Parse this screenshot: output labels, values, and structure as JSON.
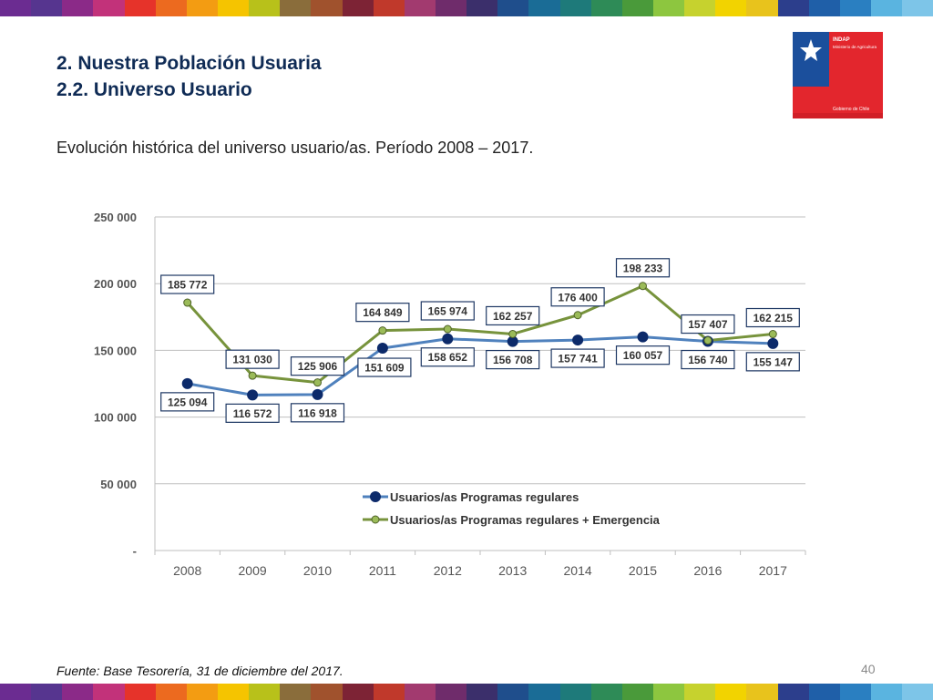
{
  "heading": {
    "line1": "2. Nuestra Población Usuaria",
    "line2": "2.2. Universo Usuario"
  },
  "logo": {
    "name": "INDAP",
    "ministry": "Ministerio de Agricultura",
    "government": "Gobierno de Chile",
    "icon": "chile-coat-of-arms-icon"
  },
  "subtitle": "Evolución histórica del universo usuario/as. Período 2008 – 2017.",
  "source": "Fuente: Base Tesorería, 31 de diciembre del 2017.",
  "page_number": "40",
  "colors": {
    "navy": "#0f2b55",
    "series1_line": "#4f81bd",
    "series1_marker": "#0c2a6a",
    "series2_line": "#77933c",
    "series2_marker": "#9bbb59",
    "grid": "#bfbfbf",
    "stripe": [
      "#6b2c91",
      "#56358f",
      "#8b2a88",
      "#c2327a",
      "#e6332a",
      "#ec6a1f",
      "#f39c12",
      "#f5c400",
      "#b8c11a",
      "#8a6d3b",
      "#a0522d",
      "#7d2335",
      "#c0392b",
      "#a23a6f",
      "#6f2c6b",
      "#3b2f6b",
      "#1f4e8c",
      "#1a6c96",
      "#1e7a7a",
      "#2e8b57",
      "#4a9a3a",
      "#8dc63f",
      "#c6d22e",
      "#f2d300",
      "#e8c31c",
      "#2c3e8c",
      "#1f5fa8",
      "#2a7fc1",
      "#5ab4e0",
      "#7dc5e8"
    ]
  },
  "chart_data": {
    "type": "line",
    "categories": [
      "2008",
      "2009",
      "2010",
      "2011",
      "2012",
      "2013",
      "2014",
      "2015",
      "2016",
      "2017"
    ],
    "ylim": [
      0,
      250000
    ],
    "yticks": [
      {
        "value": 0,
        "label": "-"
      },
      {
        "value": 50000,
        "label": "50 000"
      },
      {
        "value": 100000,
        "label": "100 000"
      },
      {
        "value": 150000,
        "label": "150 000"
      },
      {
        "value": 200000,
        "label": "200 000"
      },
      {
        "value": 250000,
        "label": "250 000"
      }
    ],
    "grid": true,
    "legend_position": "center-bottom",
    "series": [
      {
        "name": "Usuarios/as Programas regulares",
        "values": [
          125094,
          116572,
          116918,
          151609,
          158652,
          156708,
          157741,
          160057,
          156740,
          155147
        ],
        "labels": [
          "125 094",
          "116 572",
          "116 918",
          "151 609",
          "158 652",
          "156 708",
          "157 741",
          "160 057",
          "156 740",
          "155 147"
        ]
      },
      {
        "name": "Usuarios/as Programas regulares + Emergencia",
        "values": [
          185772,
          131030,
          125906,
          164849,
          165974,
          162257,
          176400,
          198233,
          157407,
          162215
        ],
        "labels": [
          "185 772",
          "131 030",
          "125 906",
          "164 849",
          "165 974",
          "162 257",
          "176 400",
          "198 233",
          "157 407",
          "162 215"
        ]
      }
    ]
  }
}
